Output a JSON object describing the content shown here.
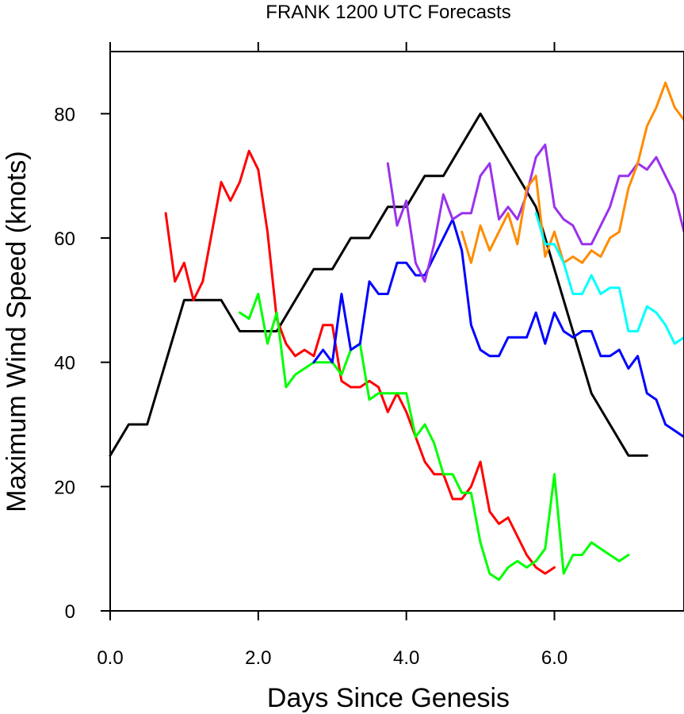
{
  "chart_data": {
    "type": "line",
    "title": "FRANK 1200 UTC Forecasts",
    "xlabel": "Days Since Genesis",
    "ylabel": "Maximum Wind Speed (knots)",
    "xlim": [
      0,
      7.75
    ],
    "ylim": [
      0,
      90
    ],
    "x_ticks": [
      0,
      2,
      4,
      6
    ],
    "x_tick_labels": [
      "0.0",
      "2.0",
      "4.0",
      "6.0"
    ],
    "y_ticks": [
      0,
      20,
      40,
      60,
      80
    ],
    "y_tick_labels": [
      "0",
      "20",
      "40",
      "60",
      "80"
    ],
    "grid": false,
    "series": [
      {
        "color": "#000000",
        "points": [
          [
            0,
            25
          ],
          [
            0.25,
            30
          ],
          [
            0.5,
            30
          ],
          [
            1.0,
            50
          ],
          [
            1.5,
            50
          ],
          [
            1.75,
            45
          ],
          [
            2.25,
            45
          ],
          [
            2.75,
            55
          ],
          [
            3.0,
            55
          ],
          [
            3.25,
            60
          ],
          [
            3.5,
            60
          ],
          [
            3.75,
            65
          ],
          [
            4.0,
            65
          ],
          [
            4.25,
            70
          ],
          [
            4.5,
            70
          ],
          [
            4.75,
            75
          ],
          [
            5.0,
            80
          ],
          [
            5.75,
            65
          ],
          [
            6.0,
            55
          ],
          [
            6.5,
            35
          ],
          [
            7.0,
            25
          ],
          [
            7.25,
            25
          ]
        ]
      },
      {
        "color": "#ff0000",
        "points": [
          [
            0.75,
            64
          ],
          [
            0.875,
            53
          ],
          [
            1.0,
            56
          ],
          [
            1.125,
            50
          ],
          [
            1.25,
            53
          ],
          [
            1.375,
            61
          ],
          [
            1.5,
            69
          ],
          [
            1.625,
            66
          ],
          [
            1.75,
            69
          ],
          [
            1.875,
            74
          ],
          [
            2.0,
            71
          ],
          [
            2.125,
            61
          ],
          [
            2.25,
            47
          ],
          [
            2.375,
            43
          ],
          [
            2.5,
            41
          ],
          [
            2.625,
            42
          ],
          [
            2.75,
            41
          ],
          [
            2.875,
            46
          ],
          [
            3.0,
            46
          ],
          [
            3.125,
            37
          ],
          [
            3.25,
            36
          ],
          [
            3.375,
            36
          ],
          [
            3.5,
            37
          ],
          [
            3.625,
            36
          ],
          [
            3.75,
            32
          ],
          [
            3.875,
            35
          ],
          [
            4.0,
            32
          ],
          [
            4.125,
            28
          ],
          [
            4.25,
            24
          ],
          [
            4.375,
            22
          ],
          [
            4.5,
            22
          ],
          [
            4.625,
            18
          ],
          [
            4.75,
            18
          ],
          [
            4.875,
            20
          ],
          [
            5.0,
            24
          ],
          [
            5.125,
            16
          ],
          [
            5.25,
            14
          ],
          [
            5.375,
            15
          ],
          [
            5.5,
            12
          ],
          [
            5.625,
            9
          ],
          [
            5.75,
            7
          ],
          [
            5.875,
            6
          ],
          [
            6.0,
            7
          ]
        ]
      },
      {
        "color": "#00ff00",
        "points": [
          [
            1.75,
            48
          ],
          [
            1.875,
            47
          ],
          [
            2.0,
            51
          ],
          [
            2.125,
            43
          ],
          [
            2.25,
            48
          ],
          [
            2.375,
            36
          ],
          [
            2.5,
            38
          ],
          [
            2.625,
            39
          ],
          [
            2.75,
            40
          ],
          [
            2.875,
            40
          ],
          [
            3.0,
            40
          ],
          [
            3.125,
            38
          ],
          [
            3.25,
            42
          ],
          [
            3.375,
            43
          ],
          [
            3.5,
            34
          ],
          [
            3.625,
            35
          ],
          [
            3.75,
            35
          ],
          [
            3.875,
            35
          ],
          [
            4.0,
            35
          ],
          [
            4.125,
            28
          ],
          [
            4.25,
            30
          ],
          [
            4.375,
            27
          ],
          [
            4.5,
            22
          ],
          [
            4.625,
            22
          ],
          [
            4.75,
            19
          ],
          [
            4.875,
            19
          ],
          [
            5.0,
            11
          ],
          [
            5.125,
            6
          ],
          [
            5.25,
            5
          ],
          [
            5.375,
            7
          ],
          [
            5.5,
            8
          ],
          [
            5.625,
            7
          ],
          [
            5.75,
            8
          ],
          [
            5.875,
            10
          ],
          [
            6.0,
            22
          ],
          [
            6.125,
            6
          ],
          [
            6.25,
            9
          ],
          [
            6.375,
            9
          ],
          [
            6.5,
            11
          ],
          [
            6.625,
            10
          ],
          [
            6.75,
            9
          ],
          [
            6.875,
            8
          ],
          [
            7.0,
            9
          ]
        ]
      },
      {
        "color": "#0000ff",
        "points": [
          [
            2.75,
            40
          ],
          [
            2.875,
            42
          ],
          [
            3.0,
            40
          ],
          [
            3.125,
            51
          ],
          [
            3.25,
            42
          ],
          [
            3.375,
            43
          ],
          [
            3.5,
            53
          ],
          [
            3.625,
            51
          ],
          [
            3.75,
            51
          ],
          [
            3.875,
            56
          ],
          [
            4.0,
            56
          ],
          [
            4.125,
            54
          ],
          [
            4.25,
            54
          ],
          [
            4.375,
            57
          ],
          [
            4.5,
            60
          ],
          [
            4.625,
            63
          ],
          [
            4.75,
            58
          ],
          [
            4.875,
            46
          ],
          [
            5.0,
            42
          ],
          [
            5.125,
            41
          ],
          [
            5.25,
            41
          ],
          [
            5.375,
            44
          ],
          [
            5.5,
            44
          ],
          [
            5.625,
            44
          ],
          [
            5.75,
            48
          ],
          [
            5.875,
            43
          ],
          [
            6.0,
            48
          ],
          [
            6.125,
            45
          ],
          [
            6.25,
            44
          ],
          [
            6.375,
            45
          ],
          [
            6.5,
            45
          ],
          [
            6.625,
            41
          ],
          [
            6.75,
            41
          ],
          [
            6.875,
            42
          ],
          [
            7.0,
            39
          ],
          [
            7.125,
            41
          ],
          [
            7.25,
            35
          ],
          [
            7.375,
            34
          ],
          [
            7.5,
            30
          ],
          [
            7.75,
            28
          ]
        ]
      },
      {
        "color": "#9932ee",
        "points": [
          [
            3.75,
            72
          ],
          [
            3.875,
            62
          ],
          [
            4.0,
            66
          ],
          [
            4.125,
            56
          ],
          [
            4.25,
            53
          ],
          [
            4.375,
            59
          ],
          [
            4.5,
            67
          ],
          [
            4.625,
            63
          ],
          [
            4.75,
            64
          ],
          [
            4.875,
            64
          ],
          [
            5.0,
            70
          ],
          [
            5.125,
            72
          ],
          [
            5.25,
            63
          ],
          [
            5.375,
            65
          ],
          [
            5.5,
            63
          ],
          [
            5.625,
            67
          ],
          [
            5.75,
            73
          ],
          [
            5.875,
            75
          ],
          [
            6.0,
            65
          ],
          [
            6.125,
            63
          ],
          [
            6.25,
            62
          ],
          [
            6.375,
            59
          ],
          [
            6.5,
            59
          ],
          [
            6.625,
            62
          ],
          [
            6.75,
            65
          ],
          [
            6.875,
            70
          ],
          [
            7.0,
            70
          ],
          [
            7.125,
            72
          ],
          [
            7.25,
            71
          ],
          [
            7.375,
            73
          ],
          [
            7.5,
            70
          ],
          [
            7.625,
            67
          ],
          [
            7.75,
            61
          ]
        ]
      },
      {
        "color": "#ff8c00",
        "points": [
          [
            4.75,
            61
          ],
          [
            4.875,
            56
          ],
          [
            5.0,
            62
          ],
          [
            5.125,
            58
          ],
          [
            5.25,
            61
          ],
          [
            5.375,
            64
          ],
          [
            5.5,
            59
          ],
          [
            5.625,
            68
          ],
          [
            5.75,
            70
          ],
          [
            5.875,
            57
          ],
          [
            6.0,
            61
          ],
          [
            6.125,
            56
          ],
          [
            6.25,
            57
          ],
          [
            6.375,
            56
          ],
          [
            6.5,
            58
          ],
          [
            6.625,
            57
          ],
          [
            6.75,
            60
          ],
          [
            6.875,
            61
          ],
          [
            7.0,
            68
          ],
          [
            7.125,
            72
          ],
          [
            7.25,
            78
          ],
          [
            7.375,
            81
          ],
          [
            7.5,
            85
          ],
          [
            7.625,
            81
          ],
          [
            7.75,
            79
          ]
        ]
      },
      {
        "color": "#00ffff",
        "points": [
          [
            5.75,
            64
          ],
          [
            5.875,
            59
          ],
          [
            6.0,
            59
          ],
          [
            6.125,
            56
          ],
          [
            6.25,
            51
          ],
          [
            6.375,
            51
          ],
          [
            6.5,
            54
          ],
          [
            6.625,
            51
          ],
          [
            6.75,
            52
          ],
          [
            6.875,
            52
          ],
          [
            7.0,
            45
          ],
          [
            7.125,
            45
          ],
          [
            7.25,
            49
          ],
          [
            7.375,
            48
          ],
          [
            7.5,
            46
          ],
          [
            7.625,
            43
          ],
          [
            7.75,
            44
          ]
        ]
      }
    ]
  }
}
